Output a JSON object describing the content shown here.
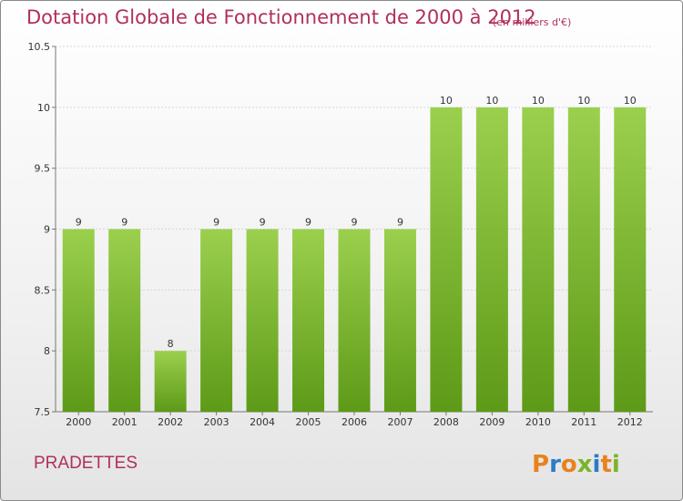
{
  "header": {
    "title": "Dotation Globale de Fonctionnement de 2000 à 2012",
    "unit": "(en milliers d'€)"
  },
  "footer": {
    "commune": "PRADETTES",
    "logo_text": "Proxiti"
  },
  "colors": {
    "title": "#b0305b",
    "bar_top": "#9bd04e",
    "bar_bottom": "#5d9a17",
    "logo_letters": [
      "#e8821e",
      "#2a7cc7",
      "#e8821e",
      "#7ab42a",
      "#2a7cc7",
      "#e8821e",
      "#7ab42a"
    ]
  },
  "chart_data": {
    "type": "bar",
    "categories": [
      "2000",
      "2001",
      "2002",
      "2003",
      "2004",
      "2005",
      "2006",
      "2007",
      "2008",
      "2009",
      "2010",
      "2011",
      "2012"
    ],
    "values": [
      9,
      9,
      8,
      9,
      9,
      9,
      9,
      9,
      10,
      10,
      10,
      10,
      10
    ],
    "data_labels": [
      "9",
      "9",
      "8",
      "9",
      "9",
      "9",
      "9",
      "9",
      "10",
      "10",
      "10",
      "10",
      "10"
    ],
    "yticks": [
      "7.5",
      "8",
      "8.5",
      "9",
      "9.5",
      "10",
      "10.5"
    ],
    "ylim": [
      7.5,
      10.5
    ],
    "grid": true
  }
}
